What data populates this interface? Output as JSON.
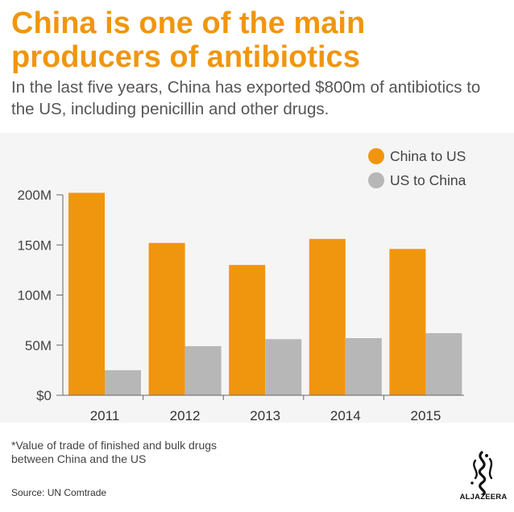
{
  "header": {
    "title": "China is one of the main producers of antibiotics",
    "subtitle": "In the last five years, China has exported $800m of antibiotics to the US, including penicillin and other drugs."
  },
  "footer": {
    "note": "*Value of trade of finished and bulk drugs between China and the US",
    "source": "Source:  UN Comtrade",
    "logo_text": "ALJAZEERA"
  },
  "colors": {
    "china_to_us": "#f0960e",
    "us_to_china": "#b7b7b7",
    "title": "#f0960e",
    "panel_bg": "#f5f5f5"
  },
  "chart_data": {
    "type": "bar",
    "title": "China is one of the main producers of antibiotics",
    "xlabel": "",
    "ylabel": "",
    "categories": [
      "2011",
      "2012",
      "2013",
      "2014",
      "2015"
    ],
    "series": [
      {
        "name": "China to US",
        "values": [
          202,
          152,
          130,
          156,
          146
        ],
        "color": "#f0960e"
      },
      {
        "name": "US to China",
        "values": [
          25,
          49,
          56,
          57,
          62
        ],
        "color": "#b7b7b7"
      }
    ],
    "ylim": [
      0,
      200
    ],
    "yticks": [
      0,
      50,
      100,
      150,
      200
    ],
    "ytick_labels": [
      "$0",
      "50M",
      "100M",
      "150M",
      "200M"
    ],
    "grid": false,
    "legend_position": "top-right"
  }
}
